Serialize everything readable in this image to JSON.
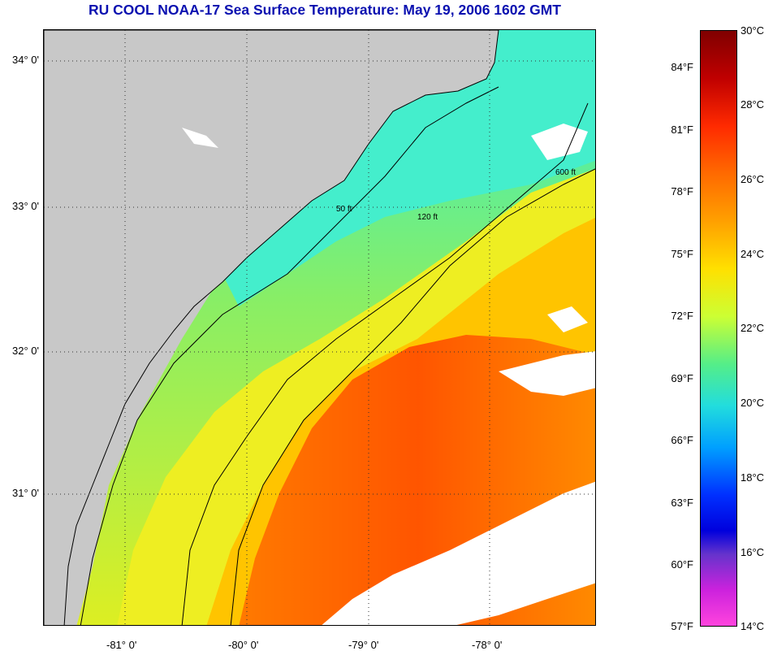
{
  "title": "RU COOL  NOAA-17  Sea Surface Temperature:  May 19, 2006 1602 GMT",
  "latitude_labels": [
    "34° 0'",
    "33° 0'",
    "32° 0'",
    "31° 0'"
  ],
  "longitude_labels": [
    "-81° 0'",
    "-80° 0'",
    "-79° 0'",
    "-78° 0'"
  ],
  "contour_labels": [
    "50 ft",
    "120 ft",
    "600 ft"
  ],
  "colorbar": {
    "fahrenheit_labels": [
      "84°F",
      "81°F",
      "78°F",
      "75°F",
      "72°F",
      "69°F",
      "66°F",
      "63°F",
      "60°F",
      "57°F"
    ],
    "celsius_labels": [
      "30°C",
      "28°C",
      "26°C",
      "24°C",
      "22°C",
      "20°C",
      "18°C",
      "16°C",
      "14°C"
    ],
    "range_celsius": [
      14,
      30
    ]
  },
  "colors": {
    "land": "#c8c8c8",
    "cloud": "#ffffff",
    "title": "#0a10b0"
  }
}
